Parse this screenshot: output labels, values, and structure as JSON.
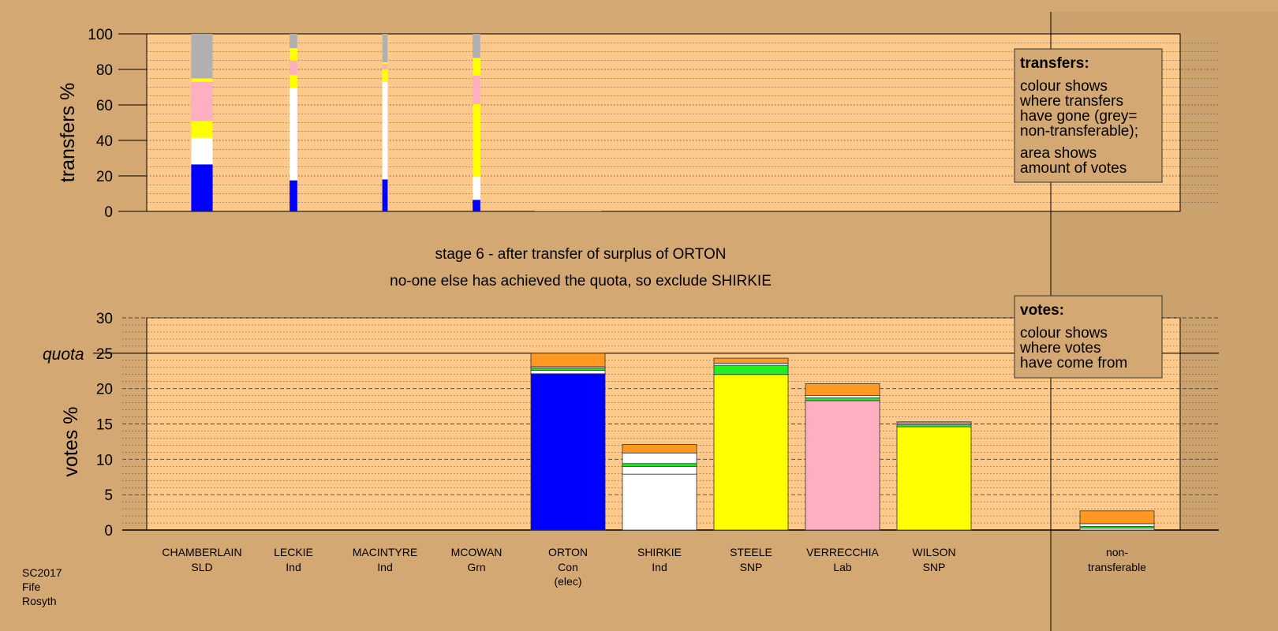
{
  "stage_title": "stage 6 - after transfer of surplus of ORTON",
  "stage_subtitle": "no-one else has achieved the quota, so exclude SHIRKIE",
  "footer": [
    "SC2017",
    "Fife",
    "Rosyth"
  ],
  "colors": {
    "background": "#d4a872",
    "plot_bg": "#fdc98a",
    "Con": "#0000ff",
    "Ind": "#ffffff",
    "SNP": "#ffff00",
    "Lab": "#ffb0c0",
    "Grn": "#22ee22",
    "SLD": "#ff9922",
    "nontransferable": "#b0b0b0"
  },
  "chart_data": [
    {
      "type": "bar",
      "stacked": true,
      "ylabel": "transfers %",
      "ylim": [
        0,
        100
      ],
      "yticks": [
        0,
        20,
        40,
        60,
        80,
        100
      ],
      "grid": true,
      "categories": [
        "CHAMBERLAIN",
        "LECKIE",
        "MACINTYRE",
        "MCOWAN",
        "ORTON"
      ],
      "bar_weights": [
        2.8,
        1.0,
        0.7,
        1.0,
        0
      ],
      "segments": [
        [
          {
            "to": "Con",
            "value": 26.5
          },
          {
            "to": "Ind",
            "value": 15
          },
          {
            "to": "SNP",
            "value": 9.5
          },
          {
            "to": "Lab",
            "value": 22
          },
          {
            "to": "SNP",
            "value": 2
          },
          {
            "to": "nontransferable",
            "value": 25
          }
        ],
        [
          {
            "to": "Con",
            "value": 17.5
          },
          {
            "to": "Ind",
            "value": 52
          },
          {
            "to": "SNP",
            "value": 7.5
          },
          {
            "to": "Lab",
            "value": 8
          },
          {
            "to": "SNP",
            "value": 7
          },
          {
            "to": "nontransferable",
            "value": 8
          }
        ],
        [
          {
            "to": "Con",
            "value": 18
          },
          {
            "to": "Ind",
            "value": 55
          },
          {
            "to": "SNP",
            "value": 7
          },
          {
            "to": "Lab",
            "value": 3
          },
          {
            "to": "SNP",
            "value": 1
          },
          {
            "to": "nontransferable",
            "value": 16
          }
        ],
        [
          {
            "to": "Con",
            "value": 6.5
          },
          {
            "to": "Ind",
            "value": 13
          },
          {
            "to": "SNP",
            "value": 41
          },
          {
            "to": "Lab",
            "value": 16
          },
          {
            "to": "SNP",
            "value": 10
          },
          {
            "to": "nontransferable",
            "value": 13.5
          }
        ],
        []
      ]
    },
    {
      "type": "bar",
      "stacked": true,
      "ylabel": "votes %",
      "ylim": [
        0,
        30
      ],
      "yticks": [
        0,
        5,
        10,
        15,
        20,
        25,
        30
      ],
      "quota": 25,
      "quota_label": "quota",
      "grid": true,
      "categories": [
        {
          "name": "CHAMBERLAIN",
          "party": "SLD",
          "note": ""
        },
        {
          "name": "LECKIE",
          "party": "Ind",
          "note": ""
        },
        {
          "name": "MACINTYRE",
          "party": "Ind",
          "note": ""
        },
        {
          "name": "MCOWAN",
          "party": "Grn",
          "note": ""
        },
        {
          "name": "ORTON",
          "party": "Con",
          "note": "(elec)"
        },
        {
          "name": "SHIRKIE",
          "party": "Ind",
          "note": ""
        },
        {
          "name": "STEELE",
          "party": "SNP",
          "note": ""
        },
        {
          "name": "VERRECCHIA",
          "party": "Lab",
          "note": ""
        },
        {
          "name": "WILSON",
          "party": "SNP",
          "note": ""
        },
        {
          "name": "non-",
          "party": "transferable",
          "note": ""
        }
      ],
      "segments": [
        [],
        [],
        [],
        [],
        [
          {
            "from": "Con",
            "value": 22.1
          },
          {
            "from": "Ind",
            "value": 0.5
          },
          {
            "from": "Grn",
            "value": 0.3
          },
          {
            "from": "Ind",
            "value": 0.2
          },
          {
            "from": "SLD",
            "value": 1.9
          }
        ],
        [
          {
            "from": "Ind",
            "value": 7.9
          },
          {
            "from": "Ind",
            "value": 1.1
          },
          {
            "from": "Grn",
            "value": 0.4
          },
          {
            "from": "Ind",
            "value": 1.5
          },
          {
            "from": "SLD",
            "value": 1.2
          }
        ],
        [
          {
            "from": "SNP",
            "value": 22
          },
          {
            "from": "Grn",
            "value": 1.3
          },
          {
            "from": "Ind",
            "value": 0.3
          },
          {
            "from": "SLD",
            "value": 0.7
          }
        ],
        [
          {
            "from": "Lab",
            "value": 18.3
          },
          {
            "from": "Grn",
            "value": 0.4
          },
          {
            "from": "Ind",
            "value": 0.3
          },
          {
            "from": "SLD",
            "value": 1.7
          }
        ],
        [
          {
            "from": "SNP",
            "value": 14.6
          },
          {
            "from": "Grn",
            "value": 0.3
          },
          {
            "from": "Ind",
            "value": 0.2
          },
          {
            "from": "SLD",
            "value": 0.2
          }
        ],
        [
          {
            "from": "Ind",
            "value": 0.3
          },
          {
            "from": "Grn",
            "value": 0.2
          },
          {
            "from": "Ind",
            "value": 0.4
          },
          {
            "from": "SLD",
            "value": 1.8
          }
        ]
      ]
    }
  ],
  "legend_transfers": {
    "title": "transfers:",
    "lines1": [
      "colour shows",
      "where transfers",
      "have gone (grey=",
      "non-transferable);"
    ],
    "lines2": [
      "area shows",
      "amount of votes"
    ]
  },
  "legend_votes": {
    "title": "votes:",
    "lines1": [
      "colour shows",
      "where votes",
      "have come from"
    ]
  }
}
